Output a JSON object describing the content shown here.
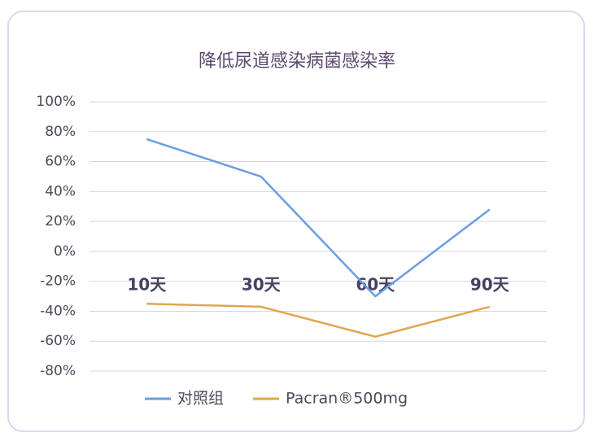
{
  "chart_data": {
    "type": "line",
    "title": "降低尿道感染病菌感染率",
    "categories": [
      "10天",
      "30天",
      "60天",
      "90天"
    ],
    "series": [
      {
        "name": "对照组",
        "color": "#6a9ee3",
        "values": [
          75,
          50,
          -30,
          28
        ]
      },
      {
        "name": "Pacran®500mg",
        "color": "#e2a552",
        "values": [
          -35,
          -37,
          -57,
          -37
        ]
      }
    ],
    "ylim": [
      -80,
      100
    ],
    "yticks": [
      {
        "value": -80,
        "label": "-80%"
      },
      {
        "value": -60,
        "label": "-60%"
      },
      {
        "value": -40,
        "label": "-40%"
      },
      {
        "value": -20,
        "label": "-20%"
      },
      {
        "value": 0,
        "label": "0%"
      },
      {
        "value": 20,
        "label": "20%"
      },
      {
        "value": 40,
        "label": "40%"
      },
      {
        "value": 60,
        "label": "60%"
      },
      {
        "value": 80,
        "label": "80%"
      },
      {
        "value": 100,
        "label": "100%"
      }
    ],
    "grid": true,
    "legend": "bottom"
  }
}
